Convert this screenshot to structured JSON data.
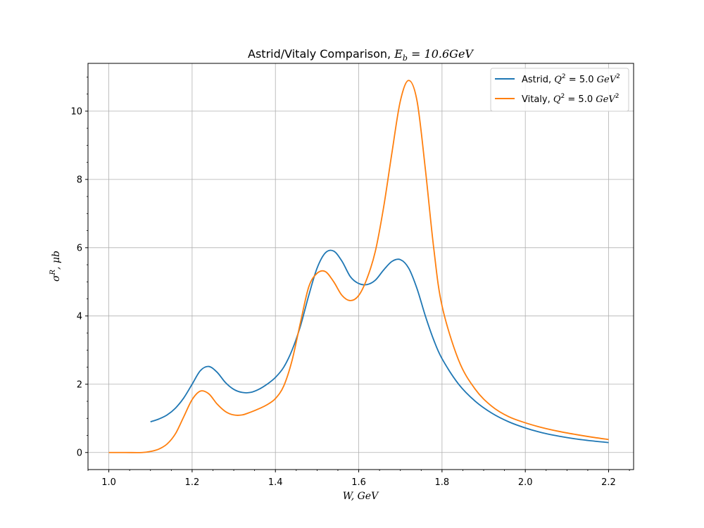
{
  "chart_data": {
    "type": "line",
    "title": "Astrid/Vitaly Comparison, E_b = 10.6GeV",
    "title_parts": {
      "prefix": "Astrid/Vitaly Comparison, ",
      "E": "E",
      "sub": "b",
      "rest": " = 10.6GeV"
    },
    "xlabel": "W, GeV",
    "ylabel": "σ^R, μb",
    "ylabel_parts": {
      "sigma": "σ",
      "sup": "R",
      "rest": ", μb"
    },
    "xlim": [
      0.95,
      2.26
    ],
    "ylim": [
      -0.5,
      11.4
    ],
    "xticks": [
      "1.0",
      "1.2",
      "1.4",
      "1.6",
      "1.8",
      "2.0",
      "2.2"
    ],
    "yticks": [
      "0",
      "2",
      "4",
      "6",
      "8",
      "10"
    ],
    "grid": true,
    "legend_position": "top-right",
    "series": [
      {
        "name": "Astrid, Q^2 = 5.0 GeV^2",
        "legend_prefix": "Astrid, ",
        "color": "#1f77b4",
        "x": [
          1.1,
          1.12,
          1.14,
          1.16,
          1.18,
          1.2,
          1.22,
          1.24,
          1.26,
          1.28,
          1.3,
          1.32,
          1.34,
          1.36,
          1.38,
          1.4,
          1.42,
          1.44,
          1.46,
          1.48,
          1.5,
          1.52,
          1.54,
          1.56,
          1.58,
          1.6,
          1.62,
          1.64,
          1.66,
          1.68,
          1.7,
          1.72,
          1.74,
          1.76,
          1.78,
          1.8,
          1.84,
          1.88,
          1.92,
          1.96,
          2.0,
          2.04,
          2.08,
          2.12,
          2.16,
          2.2
        ],
        "y": [
          0.9,
          0.98,
          1.1,
          1.3,
          1.6,
          2.0,
          2.4,
          2.52,
          2.35,
          2.05,
          1.85,
          1.76,
          1.76,
          1.85,
          2.0,
          2.2,
          2.5,
          3.0,
          3.7,
          4.6,
          5.4,
          5.85,
          5.9,
          5.6,
          5.15,
          4.95,
          4.92,
          5.05,
          5.35,
          5.6,
          5.65,
          5.4,
          4.8,
          4.0,
          3.3,
          2.75,
          2.0,
          1.5,
          1.15,
          0.9,
          0.72,
          0.58,
          0.48,
          0.4,
          0.34,
          0.29
        ]
      },
      {
        "name": "Vitaly, Q^2 = 5.0 GeV^2",
        "legend_prefix": "Vitaly, ",
        "color": "#ff7f0e",
        "x": [
          1.0,
          1.04,
          1.08,
          1.1,
          1.12,
          1.14,
          1.16,
          1.18,
          1.2,
          1.22,
          1.24,
          1.26,
          1.28,
          1.3,
          1.32,
          1.34,
          1.36,
          1.38,
          1.4,
          1.42,
          1.44,
          1.46,
          1.48,
          1.5,
          1.52,
          1.54,
          1.56,
          1.58,
          1.6,
          1.62,
          1.64,
          1.66,
          1.68,
          1.7,
          1.72,
          1.74,
          1.76,
          1.78,
          1.8,
          1.84,
          1.88,
          1.92,
          1.96,
          2.0,
          2.04,
          2.08,
          2.12,
          2.16,
          2.2
        ],
        "y": [
          0.0,
          0.0,
          0.0,
          0.03,
          0.1,
          0.25,
          0.55,
          1.05,
          1.55,
          1.8,
          1.72,
          1.42,
          1.2,
          1.1,
          1.1,
          1.18,
          1.28,
          1.4,
          1.58,
          1.95,
          2.7,
          3.8,
          4.85,
          5.25,
          5.3,
          5.0,
          4.6,
          4.45,
          4.6,
          5.1,
          5.9,
          7.2,
          8.8,
          10.3,
          10.9,
          10.3,
          8.3,
          6.0,
          4.3,
          2.7,
          1.85,
          1.35,
          1.05,
          0.87,
          0.73,
          0.62,
          0.53,
          0.45,
          0.38
        ]
      }
    ]
  }
}
